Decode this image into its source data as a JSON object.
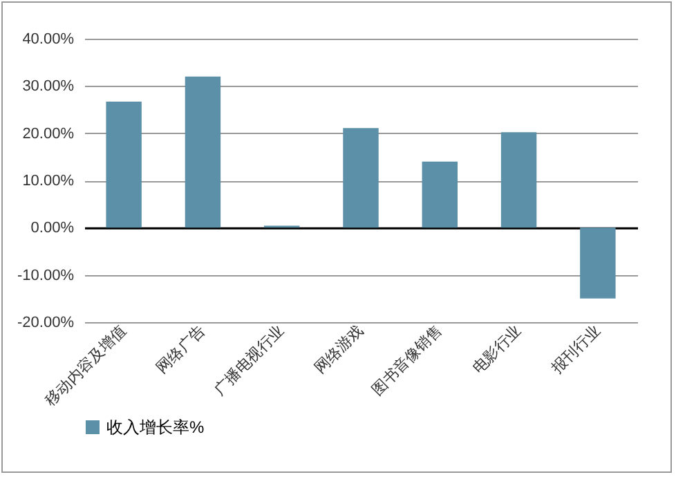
{
  "chart_data": {
    "type": "bar",
    "categories": [
      "移动内容及增值",
      "网络广告",
      "广播电视行业",
      "网络游戏",
      "图书音像销售",
      "电影行业",
      "报刊行业"
    ],
    "series": [
      {
        "name": "收入增长率%",
        "color": "#5b90a8",
        "values": [
          26.7,
          32.0,
          0.4,
          21.1,
          14.0,
          20.2,
          -15.0
        ]
      }
    ],
    "ylim": [
      -20,
      40
    ],
    "yticks": [
      {
        "value": -20,
        "label": "-20.00%"
      },
      {
        "value": -10,
        "label": "-10.00%"
      },
      {
        "value": 0,
        "label": "0.00%"
      },
      {
        "value": 10,
        "label": "10.00%"
      },
      {
        "value": 20,
        "label": "20.00%"
      },
      {
        "value": 30,
        "label": "30.00%"
      },
      {
        "value": 40,
        "label": "40.00%"
      }
    ],
    "grid": "y",
    "legend": "bottom"
  }
}
